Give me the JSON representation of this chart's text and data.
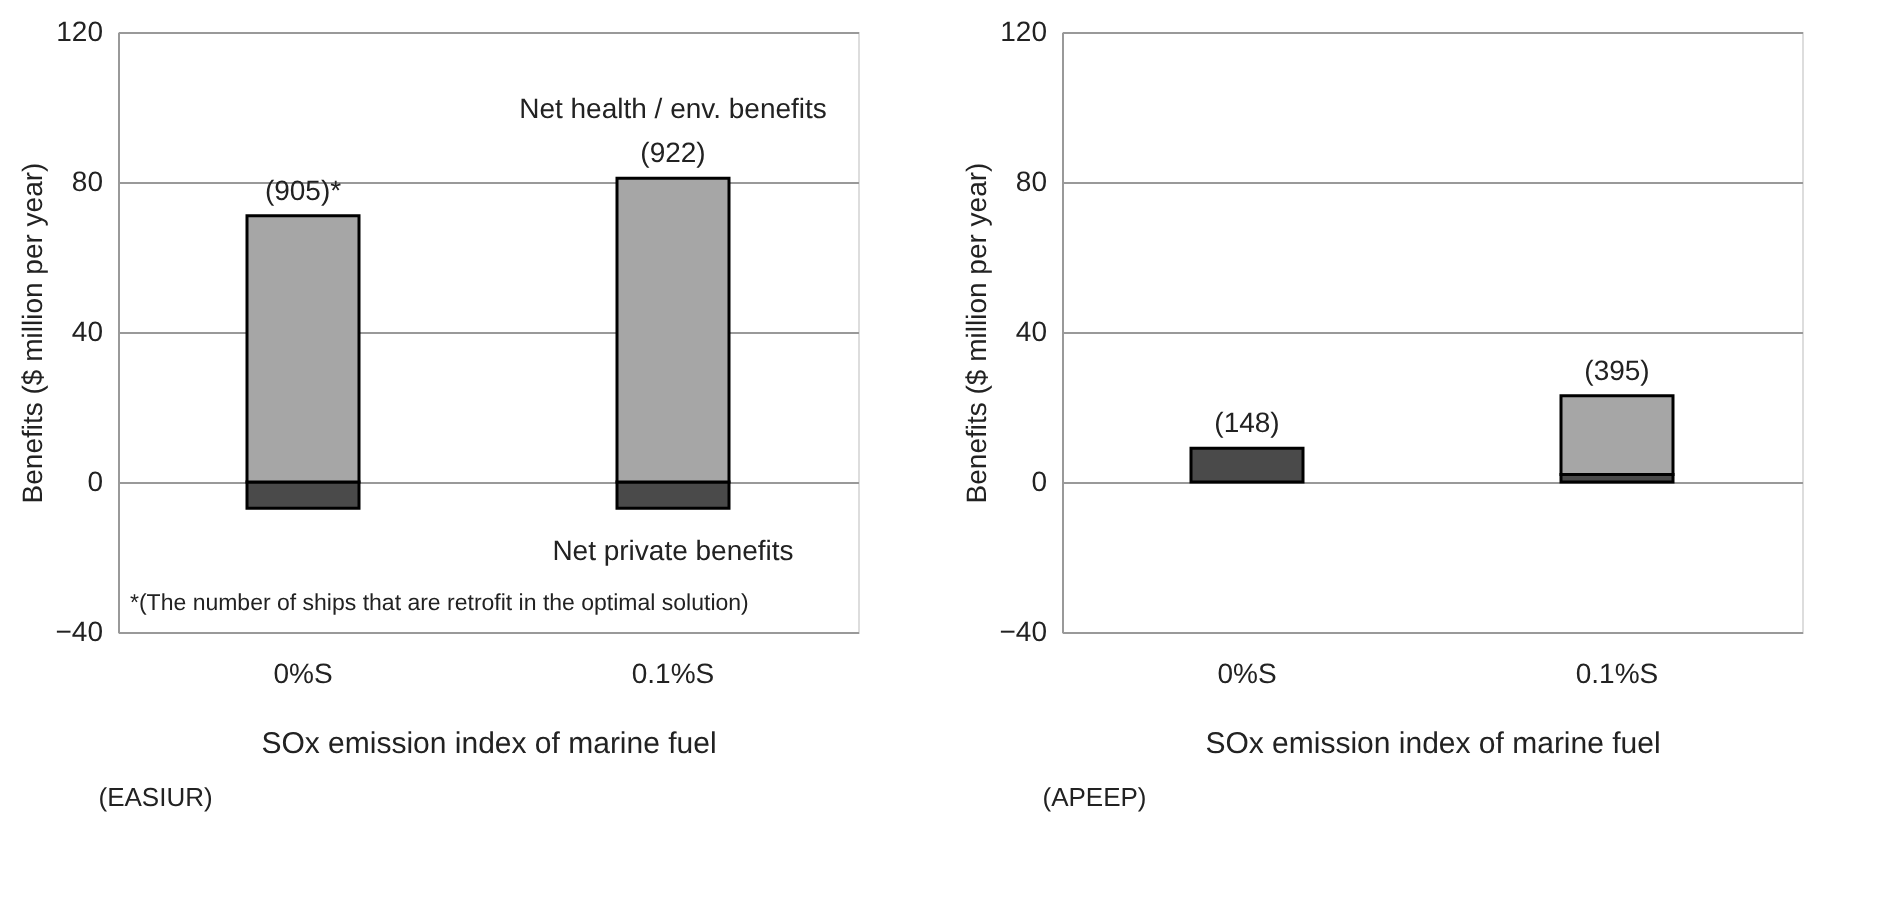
{
  "chart_data": [
    {
      "type": "bar",
      "title": "(EASIUR)",
      "xlabel": "SOx emission index of marine fuel",
      "ylabel": "Benefits ($ million per year)",
      "categories": [
        "0%S",
        "0.1%S"
      ],
      "stacked": true,
      "series": [
        {
          "name": "Net private benefits",
          "color": "#4a4a4a",
          "values": [
            -7,
            -7
          ]
        },
        {
          "name": "Net health / env. benefits",
          "color": "#a6a6a6",
          "values": [
            71,
            81
          ]
        }
      ],
      "ylim": [
        -40,
        120
      ],
      "yticks": [
        -40,
        0,
        40,
        80,
        120
      ],
      "grid": "y",
      "annotations": [
        {
          "text": "(905)*",
          "x": "0%S",
          "y": 71
        },
        {
          "text": "(922)",
          "x": "0.1%S",
          "y": 81
        },
        "*(The number of ships that are retrofit in the optimal solution)"
      ]
    },
    {
      "type": "bar",
      "title": "(APEEP)",
      "xlabel": "SOx emission index of marine fuel",
      "ylabel": "Benefits ($ million per year)",
      "categories": [
        "0%S",
        "0.1%S"
      ],
      "stacked": true,
      "series": [
        {
          "color": "#4a4a4a",
          "values": [
            9,
            2
          ]
        },
        {
          "color": "#a6a6a6",
          "values": [
            0,
            21
          ]
        }
      ],
      "ylim": [
        -40,
        120
      ],
      "yticks": [
        -40,
        0,
        40,
        80,
        120
      ],
      "grid": "y",
      "annotations": [
        {
          "text": "(148)",
          "x": "0%S",
          "y": 9
        },
        {
          "text": "(395)",
          "x": "0.1%S",
          "y": 23
        }
      ]
    }
  ]
}
